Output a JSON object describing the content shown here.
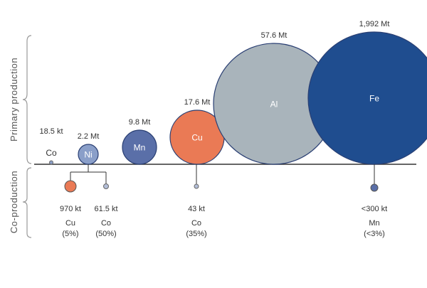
{
  "chart_data": {
    "type": "bubble",
    "section_labels": {
      "top": "Primary production",
      "bottom": "Co-production"
    },
    "primary": [
      {
        "element": "Co",
        "value_label": "18.5 kt",
        "value_t": 18500,
        "color": "#8a9fc9"
      },
      {
        "element": "Ni",
        "value_label": "2.2 Mt",
        "value_t": 2200000,
        "color": "#8a9fc9"
      },
      {
        "element": "Mn",
        "value_label": "9.8 Mt",
        "value_t": 9800000,
        "color": "#5a6fa8"
      },
      {
        "element": "Cu",
        "value_label": "17.6 Mt",
        "value_t": 17600000,
        "color": "#ea7a55"
      },
      {
        "element": "Al",
        "value_label": "57.6 Mt",
        "value_t": 57600000,
        "color": "#a9b4bb"
      },
      {
        "element": "Fe",
        "value_label": "1,992 Mt",
        "value_t": 1992000000,
        "color": "#1f4d8f"
      }
    ],
    "coproduction": [
      {
        "host": "Ni",
        "element": "Cu",
        "value_label": "970 kt",
        "share": "(5%)",
        "color": "#ea7a55"
      },
      {
        "host": "Ni",
        "element": "Co",
        "value_label": "61.5 kt",
        "share": "(50%)",
        "color": "#b3bed8"
      },
      {
        "host": "Cu",
        "element": "Co",
        "value_label": "43 kt",
        "share": "(35%)",
        "color": "#b3bed8"
      },
      {
        "host": "Fe",
        "element": "Mn",
        "value_label": "<300 kt",
        "share": "(<3%)",
        "color": "#5a6fa8"
      }
    ]
  }
}
